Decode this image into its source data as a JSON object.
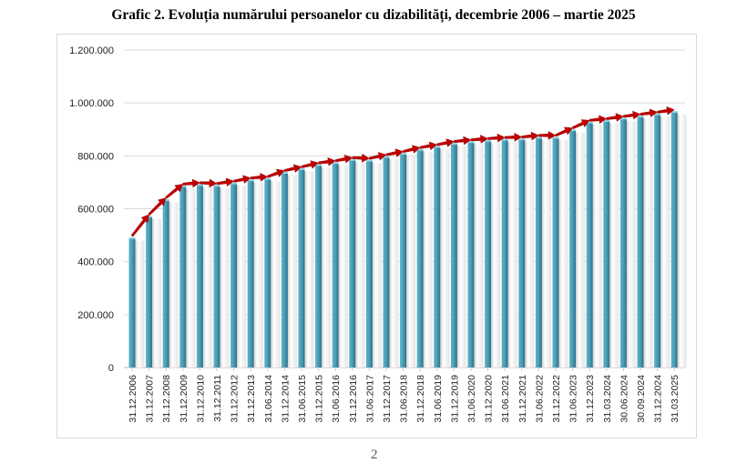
{
  "title": "Grafic 2. Evoluția numărului persoanelor cu dizabilități, decembrie 2006 – martie 2025",
  "page_number": "2",
  "colors": {
    "bar": "#4a9db5",
    "bar_dark": "#2d7187",
    "arrow": "#c00000",
    "grid": "#d9d9d9"
  },
  "chart_data": {
    "type": "bar",
    "title": "Grafic 2. Evoluția numărului persoanelor cu dizabilități, decembrie 2006 – martie 2025",
    "xlabel": "",
    "ylabel": "",
    "ylim": [
      0,
      1200000
    ],
    "yticks": [
      0,
      200000,
      400000,
      600000,
      800000,
      1000000,
      1200000
    ],
    "ytick_labels": [
      "0",
      "200.000",
      "400.000",
      "600.000",
      "800.000",
      "1.000.000",
      "1.200.000"
    ],
    "grid": true,
    "trend_arrows": true,
    "categories": [
      "31.12.2006",
      "31.12.2007",
      "31.12.2008",
      "31.12.2009",
      "31.12.2010",
      "31.12.2011",
      "31.12.2012",
      "31.12.2013",
      "31.06.2014",
      "31.12.2014",
      "31.06.2015",
      "31.12.2015",
      "31.06.2016",
      "31.12.2016",
      "31.06.2017",
      "31.12.2017",
      "31.06.2018",
      "31.12.2018",
      "31.06.2019",
      "31.12.2019",
      "31.06.2020",
      "31.12.2020",
      "31.06.2021",
      "31.12.2021",
      "31.06.2022",
      "31.12.2022",
      "31.06.2023",
      "31.12.2023",
      "31.03.2024",
      "30.06.2024",
      "30.09.2024",
      "31.12.2024",
      "31.03.2025"
    ],
    "values": [
      487000,
      568000,
      631000,
      683000,
      688000,
      685000,
      694000,
      706000,
      711000,
      734000,
      748000,
      763000,
      771000,
      783000,
      780000,
      794000,
      806000,
      821000,
      832000,
      844000,
      850000,
      855000,
      859000,
      861000,
      867000,
      867000,
      895000,
      924000,
      930000,
      939000,
      947000,
      955000,
      964000
    ]
  }
}
